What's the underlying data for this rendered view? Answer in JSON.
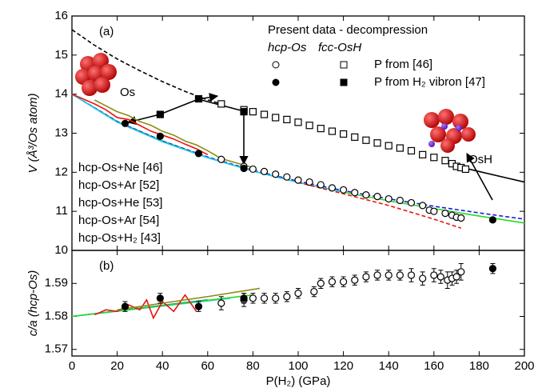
{
  "chart_data": [
    {
      "type": "scatter",
      "panel_label": "(a)",
      "ylabel": "V (Å³/Os atom)",
      "xlim": [
        0,
        200
      ],
      "xticks": [
        0,
        20,
        40,
        60,
        80,
        100,
        120,
        140,
        160,
        180,
        200
      ],
      "ylim": [
        10,
        16
      ],
      "yticks": [
        10,
        11,
        12,
        13,
        14,
        15,
        16
      ],
      "legend": {
        "title": "Present data - decompression",
        "columns": [
          "hcp-Os",
          "fcc-OsH"
        ],
        "rows": [
          "P from [46]",
          "P from H₂ vibron [47]"
        ]
      },
      "annotations": [
        "Os",
        "OsH"
      ],
      "series": [
        {
          "color": "#000000",
          "style": "dashed",
          "x": [
            0,
            10,
            20,
            30,
            40,
            50,
            60,
            66
          ],
          "values": [
            15.65,
            15.25,
            14.9,
            14.6,
            14.32,
            14.07,
            13.85,
            13.75
          ]
        },
        {
          "color": "#000000",
          "style": "solid",
          "x": [
            174,
            200
          ],
          "values": [
            12.1,
            11.75
          ]
        },
        {
          "name": "hcp-Os+Ne [46]",
          "color": "#22dd22",
          "style": "solid",
          "x": [
            0,
            20,
            40,
            60,
            80,
            100,
            120,
            140,
            160,
            180,
            200
          ],
          "values": [
            14.0,
            13.3,
            12.8,
            12.38,
            12.03,
            11.74,
            11.49,
            11.27,
            11.07,
            10.88,
            10.7
          ]
        },
        {
          "name": "hcp-Os+Ar [52]",
          "color": "#1a1adf",
          "style": "dashed",
          "x": [
            0,
            20,
            40,
            60,
            80,
            100,
            120,
            140,
            160,
            180,
            200
          ],
          "values": [
            14.0,
            13.3,
            12.8,
            12.39,
            12.05,
            11.77,
            11.53,
            11.32,
            11.13,
            10.96,
            10.8
          ]
        },
        {
          "name": "hcp-Os+He [53]",
          "color": "#22ccee",
          "style": "solid",
          "x": [
            0,
            20,
            40,
            60,
            80,
            100,
            120
          ],
          "values": [
            14.0,
            13.28,
            12.78,
            12.37,
            12.03,
            11.74,
            11.5
          ]
        },
        {
          "name": "hcp-Os+Ar [54]",
          "color": "#ee1111",
          "style": "solid",
          "x": [
            0,
            10,
            15,
            20,
            25,
            30,
            35,
            40,
            45,
            50,
            55,
            60
          ],
          "values": [
            14.0,
            13.75,
            13.6,
            13.4,
            13.35,
            13.2,
            13.05,
            12.95,
            12.85,
            12.72,
            12.6,
            12.45
          ]
        },
        {
          "color": "#ee1111",
          "style": "dashed",
          "x": [
            100,
            120,
            140,
            160,
            172
          ],
          "values": [
            11.74,
            11.45,
            11.15,
            10.8,
            10.57
          ]
        },
        {
          "name": "hcp-Os+H₂ [43]",
          "color": "#8c8c14",
          "style": "solid",
          "x": [
            10,
            15,
            20,
            25,
            30,
            35,
            40,
            45,
            50,
            55,
            60,
            66,
            72,
            80
          ],
          "values": [
            13.85,
            13.7,
            13.55,
            13.45,
            13.3,
            13.2,
            13.05,
            12.95,
            12.8,
            12.7,
            12.55,
            12.35,
            12.25,
            12.12
          ]
        },
        {
          "color": "#000000",
          "style": "open-square",
          "x": [
            66,
            76,
            80,
            85,
            90,
            95,
            100,
            105,
            110,
            115,
            120,
            125,
            130,
            135,
            140,
            145,
            150,
            155,
            160,
            165,
            168,
            170,
            172,
            174
          ],
          "values": [
            13.75,
            13.6,
            13.55,
            13.48,
            13.4,
            13.35,
            13.28,
            13.2,
            13.12,
            13.05,
            12.98,
            12.9,
            12.82,
            12.75,
            12.68,
            12.62,
            12.55,
            12.45,
            12.38,
            12.3,
            12.22,
            12.15,
            12.12,
            12.08
          ]
        },
        {
          "color": "#000000",
          "style": "filled-square",
          "x": [
            39,
            56,
            76
          ],
          "values": [
            13.48,
            13.88,
            13.55
          ]
        },
        {
          "color": "#000000",
          "style": "open-circle",
          "x": [
            66,
            76,
            80,
            85,
            90,
            95,
            100,
            105,
            110,
            115,
            120,
            125,
            130,
            135,
            140,
            145,
            150,
            155,
            158,
            160,
            165,
            168,
            170,
            172
          ],
          "values": [
            12.33,
            12.15,
            12.08,
            12.02,
            11.95,
            11.88,
            11.8,
            11.75,
            11.68,
            11.6,
            11.55,
            11.48,
            11.42,
            11.38,
            11.32,
            11.28,
            11.22,
            11.15,
            11.03,
            11.0,
            10.95,
            10.9,
            10.85,
            10.83
          ]
        },
        {
          "color": "#000000",
          "style": "filled-circle",
          "x": [
            23.5,
            39,
            56,
            76,
            186
          ],
          "values": [
            13.25,
            12.92,
            12.48,
            12.1,
            10.78
          ]
        }
      ]
    },
    {
      "type": "scatter",
      "panel_label": "(b)",
      "ylabel": "c/a (hcp-Os)",
      "xlabel": "P(H₂) (GPa)",
      "xlim": [
        0,
        200
      ],
      "xticks": [
        0,
        20,
        40,
        60,
        80,
        100,
        120,
        140,
        160,
        180,
        200
      ],
      "ylim": [
        1.568,
        1.6
      ],
      "yticks": [
        1.57,
        1.58,
        1.59
      ],
      "series": [
        {
          "color": "#1a1adf",
          "style": "solid",
          "x": [
            0,
            60
          ],
          "values": [
            1.58,
            1.585
          ]
        },
        {
          "color": "#22ccee",
          "style": "solid",
          "x": [
            0,
            70
          ],
          "values": [
            1.58,
            1.5855
          ]
        },
        {
          "color": "#22dd22",
          "style": "solid",
          "x": [
            0,
            80
          ],
          "values": [
            1.58,
            1.5865
          ]
        },
        {
          "color": "#ee1111",
          "style": "solid",
          "x": [
            10,
            15,
            20,
            25,
            30,
            33,
            36,
            40,
            45,
            50,
            55
          ],
          "values": [
            1.5805,
            1.582,
            1.5815,
            1.5835,
            1.582,
            1.585,
            1.5795,
            1.5845,
            1.5815,
            1.5865,
            1.5815
          ]
        },
        {
          "color": "#8c8c14",
          "style": "solid",
          "x": [
            20,
            40,
            60,
            83
          ],
          "values": [
            1.582,
            1.584,
            1.586,
            1.5885
          ]
        },
        {
          "color": "#000000",
          "style": "open-circle",
          "x": [
            66,
            76,
            80,
            85,
            90,
            95,
            100,
            107,
            110,
            115,
            120,
            125,
            130,
            135,
            140,
            145,
            150,
            155,
            160,
            163,
            166,
            168,
            170,
            172
          ],
          "values": [
            1.584,
            1.585,
            1.5855,
            1.5855,
            1.5855,
            1.586,
            1.587,
            1.5875,
            1.59,
            1.5905,
            1.5905,
            1.591,
            1.592,
            1.5925,
            1.5925,
            1.5925,
            1.5925,
            1.5915,
            1.5925,
            1.592,
            1.591,
            1.5915,
            1.592,
            1.5935
          ],
          "errors": [
            0.002,
            0.002,
            0.0015,
            0.0015,
            0.0015,
            0.0015,
            0.0015,
            0.0015,
            0.0015,
            0.0015,
            0.0015,
            0.0015,
            0.0015,
            0.0015,
            0.0015,
            0.0015,
            0.002,
            0.002,
            0.002,
            0.002,
            0.0025,
            0.002,
            0.002,
            0.0025
          ]
        },
        {
          "color": "#000000",
          "style": "filled-circle",
          "x": [
            23.5,
            39,
            56,
            76,
            186
          ],
          "values": [
            1.583,
            1.5855,
            1.583,
            1.5855,
            1.5945
          ],
          "errors": [
            0.0015,
            0.0015,
            0.0015,
            0.0015,
            0.0015
          ]
        }
      ]
    }
  ]
}
